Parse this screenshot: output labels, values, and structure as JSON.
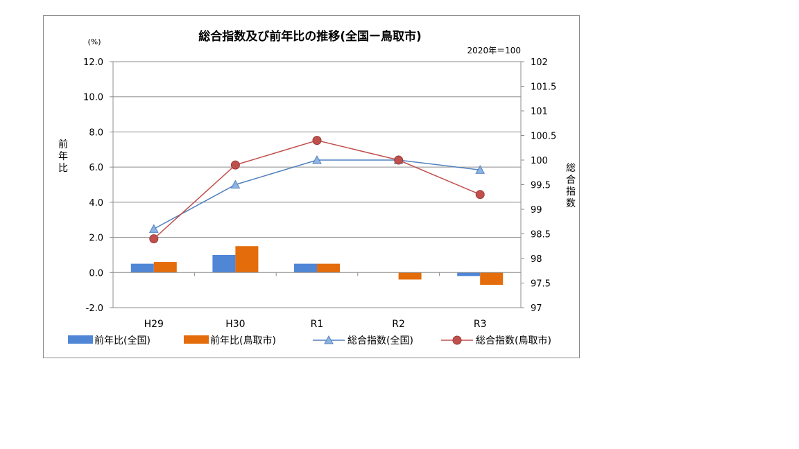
{
  "chart_data": {
    "type": "bar",
    "title": "総合指数及び前年比の推移(全国ー鳥取市)",
    "left_unit": "(%)",
    "right_note": "2020年＝100",
    "ylabel": "前年比",
    "y2label": "総合指数",
    "categories": [
      "H29",
      "H30",
      "R1",
      "R2",
      "R3"
    ],
    "ylim": [
      -2.0,
      12.0
    ],
    "y_ticks": [
      "12.0",
      "10.0",
      "8.0",
      "6.0",
      "4.0",
      "2.0",
      "0.0",
      "-2.0"
    ],
    "y2lim": [
      97,
      102
    ],
    "y2_ticks": [
      "102",
      "101.5",
      "101",
      "100.5",
      "100",
      "99.5",
      "99",
      "98.5",
      "98",
      "97.5",
      "97"
    ],
    "grid": true,
    "legend_position": "bottom",
    "bar_series": [
      {
        "name": "前年比(全国)",
        "color": "#4f86d6",
        "values": [
          0.5,
          1.0,
          0.5,
          0.0,
          -0.2
        ]
      },
      {
        "name": "前年比(鳥取市)",
        "color": "#e46c0a",
        "values": [
          0.6,
          1.5,
          0.5,
          -0.4,
          -0.7
        ]
      }
    ],
    "line_series": [
      {
        "name": "総合指数(全国)",
        "color": "#4f81bd",
        "marker": "triangle",
        "axis": "right",
        "values": [
          98.6,
          99.5,
          100.0,
          100.0,
          99.8
        ]
      },
      {
        "name": "総合指数(鳥取市)",
        "color": "#c0504d",
        "marker": "circle",
        "axis": "right",
        "values": [
          98.4,
          99.9,
          100.4,
          100.0,
          99.3
        ]
      }
    ]
  }
}
